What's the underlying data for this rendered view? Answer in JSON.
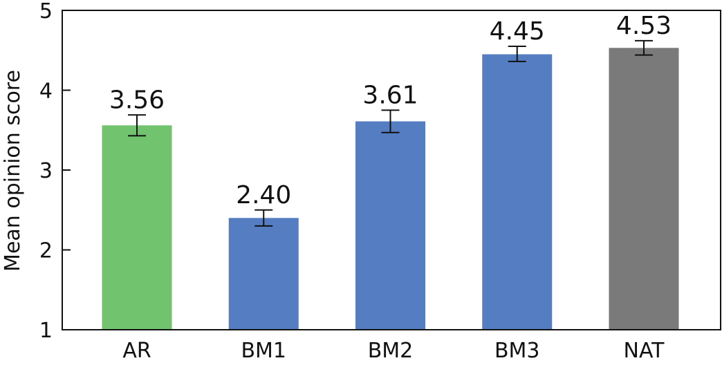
{
  "chart_data": {
    "type": "bar",
    "categories": [
      "AR",
      "BM1",
      "BM2",
      "BM3",
      "NAT"
    ],
    "values": [
      3.56,
      2.4,
      3.61,
      4.45,
      4.53
    ],
    "value_labels": [
      "3.56",
      "2.40",
      "3.61",
      "4.45",
      "4.53"
    ],
    "error_low": [
      3.43,
      2.3,
      3.47,
      4.36,
      4.44
    ],
    "error_high": [
      3.69,
      2.5,
      3.75,
      4.55,
      4.62
    ],
    "colors": [
      "#72c36e",
      "#557dc2",
      "#557dc2",
      "#557dc2",
      "#7a7a7a"
    ],
    "title": "",
    "xlabel": "",
    "ylabel": "Mean opinion score",
    "ylim": [
      1,
      5
    ],
    "yticks": [
      1,
      2,
      3,
      4,
      5
    ],
    "ytick_labels": [
      "1",
      "2",
      "3",
      "4",
      "5"
    ],
    "grid": false,
    "legend": "none"
  }
}
